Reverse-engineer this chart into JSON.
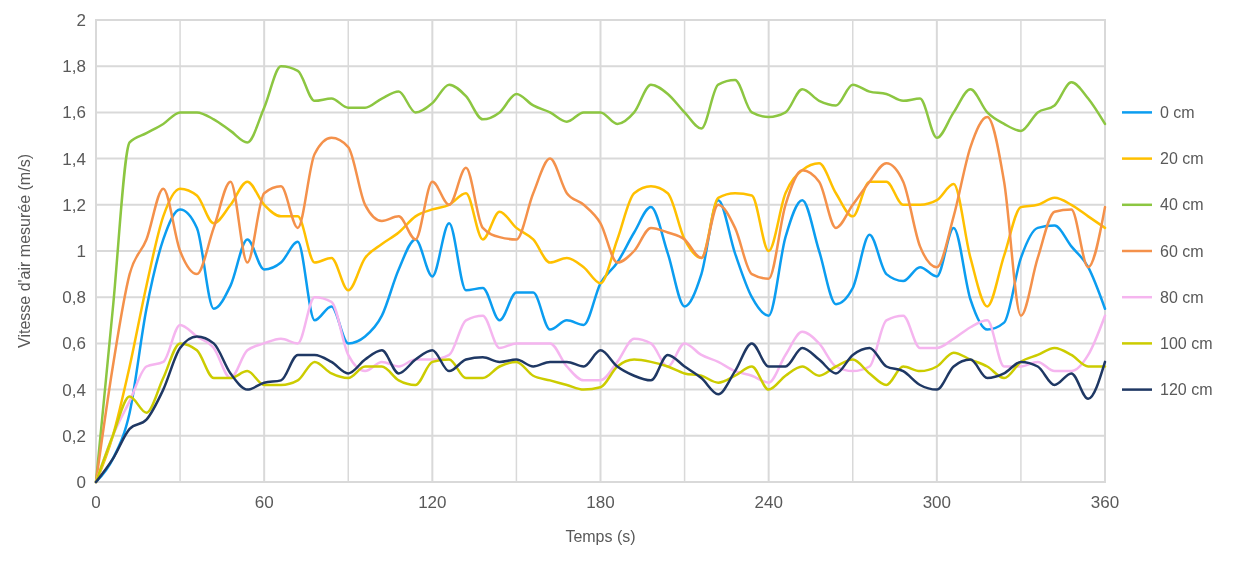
{
  "chart_data": {
    "type": "line",
    "xlabel": "Temps (s)",
    "ylabel": "Vitesse d'air mesurée (m/s)",
    "x": [
      0,
      6,
      12,
      18,
      24,
      30,
      36,
      42,
      48,
      54,
      60,
      66,
      72,
      78,
      84,
      90,
      96,
      102,
      108,
      114,
      120,
      126,
      132,
      138,
      144,
      150,
      156,
      162,
      168,
      174,
      180,
      186,
      192,
      198,
      204,
      210,
      216,
      222,
      228,
      234,
      240,
      246,
      252,
      258,
      264,
      270,
      276,
      282,
      288,
      294,
      300,
      306,
      312,
      318,
      324,
      330,
      336,
      342,
      348,
      354,
      360
    ],
    "xlim": [
      0,
      360
    ],
    "xticks": [
      0,
      {
        "value": 30,
        "label": null
      },
      60,
      {
        "value": 90,
        "label": null
      },
      120,
      {
        "value": 150,
        "label": null
      },
      180,
      {
        "value": 210,
        "label": null
      },
      240,
      {
        "value": 270,
        "label": null
      },
      300,
      {
        "value": 330,
        "label": null
      },
      360
    ],
    "ylim": [
      0,
      2
    ],
    "yticks": [
      0,
      {
        "value": 0.2,
        "label": "0,2"
      },
      {
        "value": 0.4,
        "label": "0,4"
      },
      {
        "value": 0.6,
        "label": "0,6"
      },
      {
        "value": 0.8,
        "label": "0,8"
      },
      1,
      {
        "value": 1.2,
        "label": "1,2"
      },
      {
        "value": 1.4,
        "label": "1,4"
      },
      {
        "value": 1.6,
        "label": "1,6"
      },
      {
        "value": 1.8,
        "label": "1,8"
      },
      2
    ],
    "grid": true,
    "legend": "right",
    "line_style": "solid",
    "series": [
      {
        "name": "0 cm",
        "color": "#0b9df0",
        "values": [
          0,
          0.1,
          0.3,
          0.75,
          1.05,
          1.18,
          1.1,
          0.75,
          0.85,
          1.05,
          0.92,
          0.95,
          1.04,
          0.7,
          0.76,
          0.6,
          0.63,
          0.72,
          0.92,
          1.05,
          0.89,
          1.12,
          0.83,
          0.84,
          0.7,
          0.82,
          0.82,
          0.66,
          0.7,
          0.68,
          0.86,
          0.95,
          1.08,
          1.19,
          0.99,
          0.76,
          0.9,
          1.22,
          0.99,
          0.8,
          0.72,
          1.06,
          1.22,
          1.0,
          0.77,
          0.84,
          1.07,
          0.9,
          0.87,
          0.93,
          0.89,
          1.1,
          0.79,
          0.66,
          0.69,
          0.97,
          1.1,
          1.11,
          1.02,
          0.93,
          0.75
        ]
      },
      {
        "name": "20 cm",
        "color": "#ffc000",
        "values": [
          0,
          0.2,
          0.5,
          0.85,
          1.15,
          1.27,
          1.24,
          1.12,
          1.2,
          1.3,
          1.2,
          1.15,
          1.15,
          0.95,
          0.97,
          0.83,
          0.97,
          1.03,
          1.08,
          1.15,
          1.18,
          1.2,
          1.25,
          1.05,
          1.17,
          1.1,
          1.05,
          0.95,
          0.97,
          0.93,
          0.86,
          1.05,
          1.25,
          1.28,
          1.25,
          1.05,
          0.97,
          1.23,
          1.25,
          1.24,
          1.0,
          1.25,
          1.35,
          1.38,
          1.25,
          1.15,
          1.3,
          1.3,
          1.2,
          1.2,
          1.22,
          1.29,
          0.97,
          0.76,
          0.98,
          1.19,
          1.2,
          1.23,
          1.2,
          1.15,
          1.1
        ]
      },
      {
        "name": "40 cm",
        "color": "#8cc641",
        "values": [
          0,
          0.75,
          1.47,
          1.51,
          1.55,
          1.6,
          1.6,
          1.57,
          1.52,
          1.47,
          1.62,
          1.8,
          1.78,
          1.65,
          1.66,
          1.62,
          1.62,
          1.66,
          1.69,
          1.6,
          1.64,
          1.72,
          1.67,
          1.57,
          1.6,
          1.68,
          1.63,
          1.6,
          1.56,
          1.6,
          1.6,
          1.55,
          1.6,
          1.72,
          1.68,
          1.6,
          1.53,
          1.72,
          1.74,
          1.6,
          1.58,
          1.6,
          1.7,
          1.65,
          1.63,
          1.72,
          1.69,
          1.68,
          1.65,
          1.66,
          1.49,
          1.6,
          1.7,
          1.6,
          1.55,
          1.52,
          1.6,
          1.63,
          1.73,
          1.66,
          1.55
        ]
      },
      {
        "name": "60 cm",
        "color": "#f4914b",
        "values": [
          0,
          0.5,
          0.9,
          1.05,
          1.27,
          1.0,
          0.9,
          1.1,
          1.3,
          0.95,
          1.25,
          1.28,
          1.1,
          1.42,
          1.49,
          1.45,
          1.2,
          1.13,
          1.15,
          1.05,
          1.3,
          1.2,
          1.36,
          1.1,
          1.06,
          1.05,
          1.25,
          1.4,
          1.25,
          1.2,
          1.12,
          0.95,
          1.0,
          1.1,
          1.08,
          1.05,
          0.97,
          1.2,
          1.1,
          0.9,
          0.88,
          1.2,
          1.35,
          1.3,
          1.1,
          1.2,
          1.3,
          1.38,
          1.3,
          1.02,
          0.93,
          1.15,
          1.45,
          1.58,
          1.3,
          0.72,
          0.97,
          1.17,
          1.18,
          0.93,
          1.19
        ]
      },
      {
        "name": "80 cm",
        "color": "#f5b5ef",
        "values": [
          0,
          0.2,
          0.35,
          0.5,
          0.52,
          0.68,
          0.63,
          0.58,
          0.45,
          0.57,
          0.6,
          0.62,
          0.6,
          0.8,
          0.78,
          0.55,
          0.48,
          0.52,
          0.5,
          0.53,
          0.53,
          0.55,
          0.7,
          0.72,
          0.58,
          0.6,
          0.6,
          0.6,
          0.5,
          0.44,
          0.44,
          0.52,
          0.62,
          0.6,
          0.5,
          0.6,
          0.55,
          0.52,
          0.48,
          0.46,
          0.43,
          0.55,
          0.65,
          0.6,
          0.5,
          0.48,
          0.5,
          0.7,
          0.72,
          0.58,
          0.58,
          0.62,
          0.67,
          0.7,
          0.5,
          0.5,
          0.52,
          0.48,
          0.48,
          0.55,
          0.72
        ]
      },
      {
        "name": "100 cm",
        "color": "#cccc00",
        "values": [
          0,
          0.2,
          0.37,
          0.3,
          0.45,
          0.6,
          0.57,
          0.45,
          0.45,
          0.48,
          0.42,
          0.42,
          0.44,
          0.52,
          0.47,
          0.45,
          0.5,
          0.5,
          0.44,
          0.42,
          0.52,
          0.53,
          0.45,
          0.45,
          0.5,
          0.52,
          0.46,
          0.44,
          0.42,
          0.4,
          0.41,
          0.5,
          0.53,
          0.52,
          0.5,
          0.47,
          0.46,
          0.43,
          0.46,
          0.5,
          0.4,
          0.46,
          0.5,
          0.46,
          0.5,
          0.53,
          0.47,
          0.42,
          0.5,
          0.48,
          0.5,
          0.56,
          0.53,
          0.5,
          0.45,
          0.52,
          0.55,
          0.58,
          0.55,
          0.5,
          0.5
        ]
      },
      {
        "name": "120 cm",
        "color": "#1f3864",
        "values": [
          0,
          0.1,
          0.23,
          0.27,
          0.4,
          0.58,
          0.63,
          0.6,
          0.47,
          0.4,
          0.43,
          0.44,
          0.55,
          0.55,
          0.52,
          0.47,
          0.53,
          0.57,
          0.47,
          0.53,
          0.57,
          0.48,
          0.53,
          0.54,
          0.52,
          0.53,
          0.5,
          0.52,
          0.52,
          0.5,
          0.57,
          0.5,
          0.46,
          0.44,
          0.55,
          0.5,
          0.45,
          0.38,
          0.48,
          0.6,
          0.5,
          0.5,
          0.58,
          0.53,
          0.47,
          0.55,
          0.58,
          0.5,
          0.48,
          0.42,
          0.4,
          0.5,
          0.53,
          0.45,
          0.47,
          0.52,
          0.5,
          0.42,
          0.47,
          0.36,
          0.52
        ]
      }
    ]
  }
}
